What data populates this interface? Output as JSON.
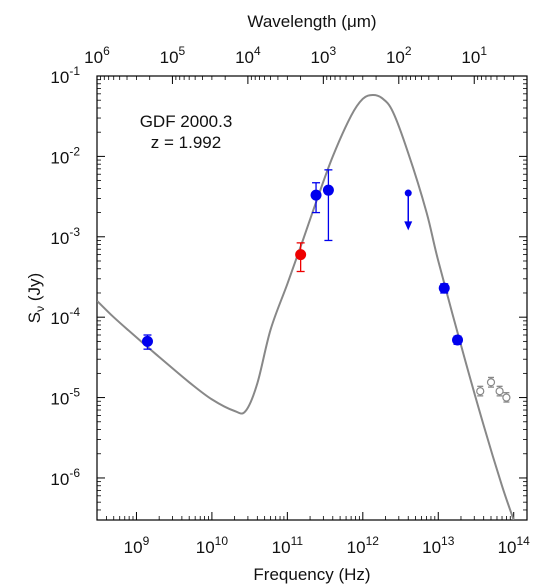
{
  "chart_data": {
    "type": "scatter",
    "title": "",
    "annotation": [
      "GDF 2000.3",
      "z = 1.992"
    ],
    "xlabel": "Frequency (Hz)",
    "ylabel_main": "S",
    "ylabel_sub": "ν",
    "ylabel_unit": " (Jy)",
    "x2label": "Wavelength (μm)",
    "x_scale": "log",
    "y_scale": "log",
    "xlim": [
      300000000.0,
      150000000000000.0
    ],
    "ylim": [
      3e-07,
      0.1
    ],
    "x_ticks": [
      {
        "value": 1000000000.0,
        "base": "10",
        "exp": "9"
      },
      {
        "value": 10000000000.0,
        "base": "10",
        "exp": "10"
      },
      {
        "value": 100000000000.0,
        "base": "10",
        "exp": "11"
      },
      {
        "value": 1000000000000.0,
        "base": "10",
        "exp": "12"
      },
      {
        "value": 10000000000000.0,
        "base": "10",
        "exp": "13"
      },
      {
        "value": 100000000000000.0,
        "base": "10",
        "exp": "14"
      }
    ],
    "x2_ticks": [
      {
        "value": 1000000.0,
        "base": "10",
        "exp": "6"
      },
      {
        "value": 100000.0,
        "base": "10",
        "exp": "5"
      },
      {
        "value": 10000.0,
        "base": "10",
        "exp": "4"
      },
      {
        "value": 1000.0,
        "base": "10",
        "exp": "3"
      },
      {
        "value": 100.0,
        "base": "10",
        "exp": "2"
      },
      {
        "value": 10.0,
        "base": "10",
        "exp": "1"
      }
    ],
    "y_ticks": [
      {
        "value": 0.1,
        "base": "10",
        "exp": "-1"
      },
      {
        "value": 0.01,
        "base": "10",
        "exp": "-2"
      },
      {
        "value": 0.001,
        "base": "10",
        "exp": "-3"
      },
      {
        "value": 0.0001,
        "base": "10",
        "exp": "-4"
      },
      {
        "value": 1e-05,
        "base": "10",
        "exp": "-5"
      },
      {
        "value": 1e-06,
        "base": "10",
        "exp": "-6"
      }
    ],
    "model_curve": {
      "color": "#888888",
      "x": [
        300000000.0,
        500000000.0,
        1000000000.0,
        2000000000.0,
        5000000000.0,
        10000000000.0,
        20000000000.0,
        28000000000.0,
        40000000000.0,
        60000000000.0,
        100000000000.0,
        160000000000.0,
        250000000000.0,
        400000000000.0,
        700000000000.0,
        1000000000000.0,
        1350000000000.0,
        1800000000000.0,
        2500000000000.0,
        4000000000000.0,
        7000000000000.0,
        10000000000000.0,
        20000000000000.0,
        40000000000000.0,
        70000000000000.0,
        100000000000000.0
      ],
      "y": [
        0.00016,
        0.0001,
        5.6e-05,
        3.2e-05,
        1.55e-05,
        9.5e-06,
        6.8e-06,
        6.8e-06,
        1.5e-05,
        7e-05,
        0.00026,
        0.0009,
        0.003,
        0.01,
        0.032,
        0.052,
        0.058,
        0.053,
        0.036,
        0.011,
        0.002,
        0.0005,
        4.5e-05,
        4.5e-06,
        8e-07,
        3e-07
      ]
    },
    "series": [
      {
        "color": "#0000ee",
        "marker": "filled-circle",
        "points": [
          {
            "x": 1400000000.0,
            "y": 5e-05,
            "ylo": 4e-05,
            "yhi": 6e-05
          },
          {
            "x": 240000000000.0,
            "y": 0.0033,
            "ylo": 0.002,
            "yhi": 0.0047
          },
          {
            "x": 350000000000.0,
            "y": 0.0038,
            "ylo": 0.0009,
            "yhi": 0.0068
          },
          {
            "x": 12000000000000.0,
            "y": 0.00023,
            "ylo": 0.0002,
            "yhi": 0.00026
          },
          {
            "x": 18000000000000.0,
            "y": 5.2e-05,
            "ylo": 4.6e-05,
            "yhi": 5.8e-05
          }
        ]
      },
      {
        "color": "#ee0000",
        "marker": "filled-circle",
        "points": [
          {
            "x": 150000000000.0,
            "y": 0.0006,
            "ylo": 0.00037,
            "yhi": 0.00084
          }
        ]
      },
      {
        "color": "#0000ee",
        "marker": "upper-limit",
        "points": [
          {
            "x": 4000000000000.0,
            "y": 0.0035,
            "yto": 0.0012
          }
        ]
      },
      {
        "color": "#888888",
        "marker": "open-circle",
        "points": [
          {
            "x": 36000000000000.0,
            "y": 1.2e-05,
            "ylo": 1.05e-05,
            "yhi": 1.38e-05
          },
          {
            "x": 50000000000000.0,
            "y": 1.55e-05,
            "ylo": 1.35e-05,
            "yhi": 1.78e-05
          },
          {
            "x": 65000000000000.0,
            "y": 1.2e-05,
            "ylo": 1.05e-05,
            "yhi": 1.38e-05
          },
          {
            "x": 80000000000000.0,
            "y": 1e-05,
            "ylo": 8.8e-06,
            "yhi": 1.15e-05
          }
        ]
      }
    ],
    "grid": false,
    "legend": "none"
  }
}
